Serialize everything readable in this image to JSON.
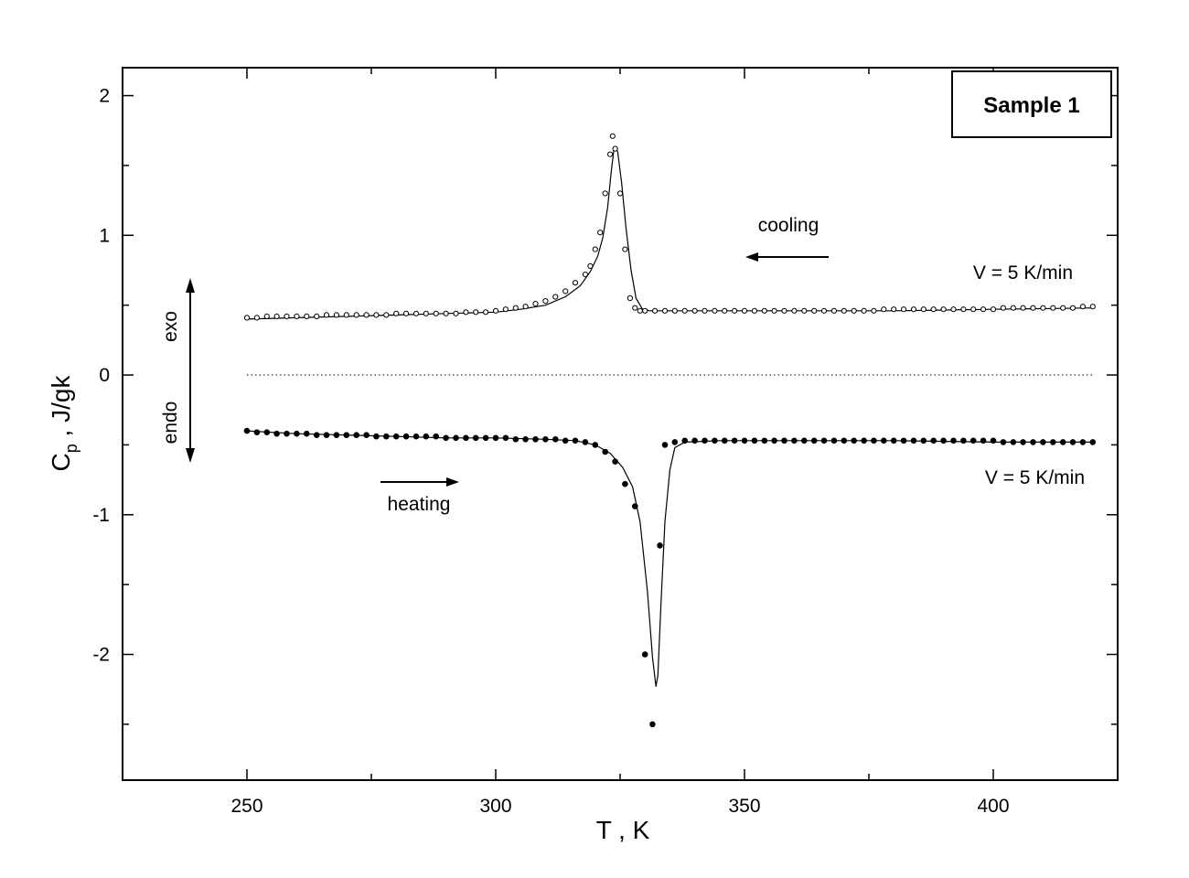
{
  "chart_data": {
    "type": "scatter",
    "title": "",
    "xlabel": "T , K",
    "ylabel_main": "C",
    "ylabel_sub": "p",
    "ylabel_rest": " , J/gk",
    "xlim": [
      225,
      425
    ],
    "ylim": [
      -2.9,
      2.2
    ],
    "x_ticks": [
      250,
      300,
      350,
      400
    ],
    "x_tick_labels": [
      "250",
      "300",
      "350",
      "400"
    ],
    "x_minor_ticks": [
      275,
      325,
      375
    ],
    "y_ticks": [
      -2,
      -1,
      0,
      1,
      2
    ],
    "y_tick_labels": [
      "-2",
      "-1",
      "0",
      "1",
      "2"
    ],
    "y_minor_ticks": [
      -2.5,
      -1.5,
      -0.5,
      0.5,
      1.5
    ],
    "zero_line": true,
    "grid": false,
    "legend_box": {
      "text": "Sample 1",
      "position": "top-right"
    },
    "annotations": {
      "cooling": "cooling",
      "heating": "heating",
      "rate_cooling": "V = 5 K/min",
      "rate_heating": "V = 5 K/min",
      "exo": "exo",
      "endo": "endo"
    },
    "series": [
      {
        "marker": "open-circle",
        "x": [
          250,
          252,
          254,
          256,
          258,
          260,
          262,
          264,
          266,
          268,
          270,
          272,
          274,
          276,
          278,
          280,
          282,
          284,
          286,
          288,
          290,
          292,
          294,
          296,
          298,
          300,
          302,
          304,
          306,
          308,
          310,
          312,
          314,
          316,
          318,
          319,
          320,
          321,
          322,
          323,
          323.5,
          324,
          325,
          326,
          327,
          328,
          329,
          330,
          332,
          334,
          336,
          338,
          340,
          342,
          344,
          346,
          348,
          350,
          352,
          354,
          356,
          358,
          360,
          362,
          364,
          366,
          368,
          370,
          372,
          374,
          376,
          378,
          380,
          382,
          384,
          386,
          388,
          390,
          392,
          394,
          396,
          398,
          400,
          402,
          404,
          406,
          408,
          410,
          412,
          414,
          416,
          418,
          420
        ],
        "y": [
          0.41,
          0.41,
          0.42,
          0.42,
          0.42,
          0.42,
          0.42,
          0.42,
          0.43,
          0.43,
          0.43,
          0.43,
          0.43,
          0.43,
          0.43,
          0.44,
          0.44,
          0.44,
          0.44,
          0.44,
          0.44,
          0.44,
          0.45,
          0.45,
          0.45,
          0.46,
          0.47,
          0.48,
          0.49,
          0.51,
          0.53,
          0.56,
          0.6,
          0.66,
          0.72,
          0.78,
          0.9,
          1.02,
          1.3,
          1.58,
          1.71,
          1.62,
          1.3,
          0.9,
          0.55,
          0.48,
          0.46,
          0.46,
          0.46,
          0.46,
          0.46,
          0.46,
          0.46,
          0.46,
          0.46,
          0.46,
          0.46,
          0.46,
          0.46,
          0.46,
          0.46,
          0.46,
          0.46,
          0.46,
          0.46,
          0.46,
          0.46,
          0.46,
          0.46,
          0.46,
          0.46,
          0.47,
          0.47,
          0.47,
          0.47,
          0.47,
          0.47,
          0.47,
          0.47,
          0.47,
          0.47,
          0.47,
          0.47,
          0.48,
          0.48,
          0.48,
          0.48,
          0.48,
          0.48,
          0.48,
          0.48,
          0.49,
          0.49
        ],
        "fit_x": [
          250,
          260,
          270,
          280,
          290,
          300,
          305,
          310,
          314,
          317,
          319,
          320.5,
          321.5,
          322.5,
          323.2,
          323.8,
          324.5,
          325.3,
          326.2,
          327.2,
          328.2,
          329.5,
          331,
          340,
          360,
          380,
          400,
          420
        ],
        "fit_y": [
          0.4,
          0.41,
          0.42,
          0.43,
          0.44,
          0.45,
          0.47,
          0.5,
          0.56,
          0.64,
          0.74,
          0.85,
          0.98,
          1.2,
          1.45,
          1.63,
          1.6,
          1.38,
          1.05,
          0.75,
          0.55,
          0.47,
          0.46,
          0.46,
          0.46,
          0.46,
          0.47,
          0.48
        ]
      },
      {
        "marker": "filled-circle",
        "x": [
          250,
          252,
          254,
          256,
          258,
          260,
          262,
          264,
          266,
          268,
          270,
          272,
          274,
          276,
          278,
          280,
          282,
          284,
          286,
          288,
          290,
          292,
          294,
          296,
          298,
          300,
          302,
          304,
          306,
          308,
          310,
          312,
          314,
          316,
          318,
          320,
          322,
          324,
          326,
          328,
          330,
          331.5,
          333,
          334,
          336,
          338,
          340,
          342,
          344,
          346,
          348,
          350,
          352,
          354,
          356,
          358,
          360,
          362,
          364,
          366,
          368,
          370,
          372,
          374,
          376,
          378,
          380,
          382,
          384,
          386,
          388,
          390,
          392,
          394,
          396,
          398,
          400,
          402,
          404,
          406,
          408,
          410,
          412,
          414,
          416,
          418,
          420
        ],
        "y": [
          -0.4,
          -0.41,
          -0.41,
          -0.42,
          -0.42,
          -0.42,
          -0.42,
          -0.43,
          -0.43,
          -0.43,
          -0.43,
          -0.43,
          -0.43,
          -0.44,
          -0.44,
          -0.44,
          -0.44,
          -0.44,
          -0.44,
          -0.44,
          -0.45,
          -0.45,
          -0.45,
          -0.45,
          -0.45,
          -0.45,
          -0.45,
          -0.46,
          -0.46,
          -0.46,
          -0.46,
          -0.46,
          -0.47,
          -0.47,
          -0.48,
          -0.5,
          -0.55,
          -0.62,
          -0.78,
          -0.94,
          -2.0,
          -2.5,
          -1.22,
          -0.5,
          -0.48,
          -0.47,
          -0.47,
          -0.47,
          -0.47,
          -0.47,
          -0.47,
          -0.47,
          -0.47,
          -0.47,
          -0.47,
          -0.47,
          -0.47,
          -0.47,
          -0.47,
          -0.47,
          -0.47,
          -0.47,
          -0.47,
          -0.47,
          -0.47,
          -0.47,
          -0.47,
          -0.47,
          -0.47,
          -0.47,
          -0.47,
          -0.47,
          -0.47,
          -0.47,
          -0.47,
          -0.47,
          -0.47,
          -0.48,
          -0.48,
          -0.48,
          -0.48,
          -0.48,
          -0.48,
          -0.48,
          -0.48,
          -0.48,
          -0.48
        ],
        "fit_x": [
          250,
          260,
          270,
          280,
          290,
          300,
          310,
          316,
          320,
          323,
          325.5,
          327.5,
          329,
          330.5,
          331.5,
          332.2,
          332.6,
          333.2,
          334,
          335,
          336,
          338,
          345,
          360,
          380,
          400,
          420
        ],
        "fit_y": [
          -0.4,
          -0.42,
          -0.43,
          -0.44,
          -0.45,
          -0.45,
          -0.46,
          -0.47,
          -0.5,
          -0.56,
          -0.66,
          -0.8,
          -1.05,
          -1.55,
          -2.02,
          -2.23,
          -2.15,
          -1.65,
          -1.05,
          -0.68,
          -0.52,
          -0.48,
          -0.47,
          -0.47,
          -0.47,
          -0.48,
          -0.48
        ]
      }
    ]
  }
}
